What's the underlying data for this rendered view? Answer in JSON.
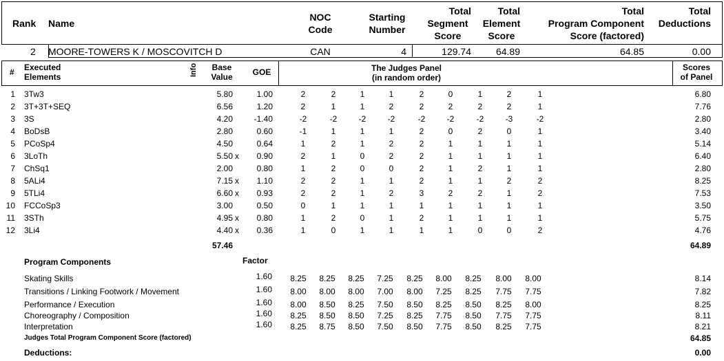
{
  "header": {
    "rank": "Rank",
    "name": "Name",
    "noc_line1": "NOC",
    "noc_line2": "Code",
    "start_line1": "Starting",
    "start_line2": "Number",
    "tss_line1": "Total",
    "tss_line2": "Segment",
    "tss_line3": "Score",
    "tes_line1": "Total",
    "tes_line2": "Element",
    "tes_line3": "Score",
    "pcs_line1": "Total",
    "pcs_line2": "Program  Component",
    "pcs_line3": "Score (factored)",
    "ded_line1": "Total",
    "ded_line2": "Deductions"
  },
  "skater": {
    "rank": "2",
    "name": "MOORE-TOWERS K / MOSCOVITCH D",
    "noc": "CAN",
    "start": "4",
    "tss": "129.74",
    "tes": "64.89",
    "pcs": "64.85",
    "deductions": "0.00"
  },
  "elements_header": {
    "num": "#",
    "exec1": "Executed",
    "exec2": "Elements",
    "info": "Info",
    "base1": "Base",
    "base2": "Value",
    "goe": "GOE",
    "panel1": "The Judges Panel",
    "panel2": "(in random order)",
    "scores1": "Scores",
    "scores2": "of Panel"
  },
  "elements": [
    {
      "num": "1",
      "name": "3Tw3",
      "base": "5.80",
      "x": "",
      "goe": "1.00",
      "judges": [
        "2",
        "2",
        "1",
        "1",
        "2",
        "0",
        "1",
        "2",
        "1"
      ],
      "score": "6.80"
    },
    {
      "num": "2",
      "name": "3T+3T+SEQ",
      "base": "6.56",
      "x": "",
      "goe": "1.20",
      "judges": [
        "2",
        "1",
        "1",
        "2",
        "2",
        "2",
        "2",
        "2",
        "1"
      ],
      "score": "7.76"
    },
    {
      "num": "3",
      "name": "3S",
      "base": "4.20",
      "x": "",
      "goe": "-1.40",
      "judges": [
        "-2",
        "-2",
        "-2",
        "-2",
        "-2",
        "-2",
        "-2",
        "-3",
        "-2"
      ],
      "score": "2.80"
    },
    {
      "num": "4",
      "name": "BoDsB",
      "base": "2.80",
      "x": "",
      "goe": "0.60",
      "judges": [
        "-1",
        "1",
        "1",
        "1",
        "2",
        "0",
        "2",
        "0",
        "1"
      ],
      "score": "3.40"
    },
    {
      "num": "5",
      "name": "PCoSp4",
      "base": "4.50",
      "x": "",
      "goe": "0.64",
      "judges": [
        "1",
        "2",
        "1",
        "2",
        "2",
        "1",
        "1",
        "1",
        "1"
      ],
      "score": "5.14"
    },
    {
      "num": "6",
      "name": "3LoTh",
      "base": "5.50",
      "x": "x",
      "goe": "0.90",
      "judges": [
        "2",
        "1",
        "0",
        "2",
        "2",
        "1",
        "1",
        "1",
        "1"
      ],
      "score": "6.40"
    },
    {
      "num": "7",
      "name": "ChSq1",
      "base": "2.00",
      "x": "",
      "goe": "0.80",
      "judges": [
        "1",
        "2",
        "0",
        "0",
        "2",
        "1",
        "2",
        "1",
        "1"
      ],
      "score": "2.80"
    },
    {
      "num": "8",
      "name": "5ALi4",
      "base": "7.15",
      "x": "x",
      "goe": "1.10",
      "judges": [
        "2",
        "2",
        "1",
        "1",
        "2",
        "1",
        "1",
        "2",
        "2"
      ],
      "score": "8.25"
    },
    {
      "num": "9",
      "name": "5TLi4",
      "base": "6.60",
      "x": "x",
      "goe": "0.93",
      "judges": [
        "2",
        "2",
        "1",
        "2",
        "3",
        "2",
        "2",
        "1",
        "2"
      ],
      "score": "7.53"
    },
    {
      "num": "10",
      "name": "FCCoSp3",
      "base": "3.00",
      "x": "",
      "goe": "0.50",
      "judges": [
        "0",
        "1",
        "1",
        "1",
        "1",
        "1",
        "1",
        "1",
        "1"
      ],
      "score": "3.50"
    },
    {
      "num": "11",
      "name": "3STh",
      "base": "4.95",
      "x": "x",
      "goe": "0.80",
      "judges": [
        "1",
        "2",
        "0",
        "1",
        "2",
        "1",
        "1",
        "1",
        "1"
      ],
      "score": "5.75"
    },
    {
      "num": "12",
      "name": "3Li4",
      "base": "4.40",
      "x": "x",
      "goe": "0.36",
      "judges": [
        "1",
        "0",
        "1",
        "1",
        "1",
        "1",
        "0",
        "0",
        "2"
      ],
      "score": "4.76"
    }
  ],
  "base_total": "57.46",
  "elements_total": "64.89",
  "pc_header": "Program Components",
  "factor_header": "Factor",
  "components": [
    {
      "name": "Skating Skills",
      "factor": "1.60",
      "judges": [
        "8.25",
        "8.25",
        "8.25",
        "7.25",
        "8.25",
        "8.00",
        "8.25",
        "8.00",
        "8.00"
      ],
      "score": "8.14"
    },
    {
      "name": "Transitions / Linking Footwork / Movement",
      "factor": "1.60",
      "judges": [
        "8.00",
        "8.00",
        "8.00",
        "7.00",
        "8.00",
        "7.25",
        "8.25",
        "7.75",
        "7.75"
      ],
      "score": "7.82"
    },
    {
      "name": "Performance / Execution",
      "factor": "1.60",
      "judges": [
        "8.00",
        "8.50",
        "8.25",
        "7.50",
        "8.50",
        "8.25",
        "8.50",
        "8.25",
        "8.00"
      ],
      "score": "8.25"
    },
    {
      "name": "Choreography / Composition",
      "factor": "1.60",
      "judges": [
        "8.25",
        "8.50",
        "8.50",
        "7.25",
        "8.25",
        "7.75",
        "8.50",
        "7.75",
        "7.75"
      ],
      "score": "8.11"
    },
    {
      "name": "Interpretation",
      "factor": "1.60",
      "judges": [
        "8.25",
        "8.75",
        "8.50",
        "7.50",
        "8.50",
        "7.75",
        "8.50",
        "8.25",
        "7.75"
      ],
      "score": "8.21"
    }
  ],
  "pcs_label": "Judges Total Program Component Score (factored)",
  "pcs_total": "64.85",
  "deductions_label": "Deductions:",
  "deductions_total": "0.00"
}
